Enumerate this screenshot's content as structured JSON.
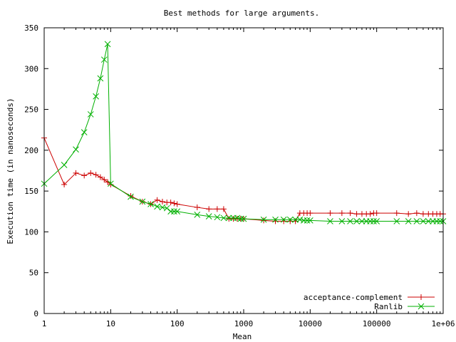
{
  "chart_data": {
    "type": "line",
    "title": "Best methods for large arguments.",
    "xlabel": "Mean",
    "ylabel": "Execution time (in nanoseconds)",
    "xscale": "log",
    "xlim": [
      1,
      1000000
    ],
    "ylim": [
      0,
      350
    ],
    "xticks": [
      1,
      10,
      100,
      1000,
      10000,
      100000,
      1000000
    ],
    "xtick_labels": [
      "1",
      "10",
      "100",
      "1000",
      "10000",
      "100000",
      "1e+06"
    ],
    "yticks": [
      0,
      50,
      100,
      150,
      200,
      250,
      300,
      350
    ],
    "ytick_labels": [
      "0",
      "50",
      "100",
      "150",
      "200",
      "250",
      "300",
      "350"
    ],
    "grid": false,
    "legend_position": "bottom-right",
    "series": [
      {
        "name": "acceptance-complement",
        "color": "#cc0000",
        "marker": "plus",
        "points": [
          [
            1,
            215
          ],
          [
            2,
            158
          ],
          [
            3,
            172
          ],
          [
            4,
            169
          ],
          [
            5,
            172
          ],
          [
            6,
            170
          ],
          [
            7,
            167
          ],
          [
            8,
            164
          ],
          [
            9,
            161
          ],
          [
            10,
            158
          ],
          [
            20,
            144
          ],
          [
            30,
            137
          ],
          [
            40,
            134
          ],
          [
            50,
            139
          ],
          [
            60,
            137
          ],
          [
            70,
            136
          ],
          [
            80,
            136
          ],
          [
            90,
            135
          ],
          [
            100,
            134
          ],
          [
            200,
            130
          ],
          [
            300,
            128
          ],
          [
            400,
            128
          ],
          [
            500,
            128
          ],
          [
            600,
            116
          ],
          [
            700,
            116
          ],
          [
            800,
            116
          ],
          [
            900,
            116
          ],
          [
            1000,
            116
          ],
          [
            2000,
            114
          ],
          [
            3000,
            113
          ],
          [
            4000,
            113
          ],
          [
            5000,
            113
          ],
          [
            6000,
            113
          ],
          [
            7000,
            123
          ],
          [
            8000,
            123
          ],
          [
            9000,
            123
          ],
          [
            10000,
            123
          ],
          [
            20000,
            123
          ],
          [
            30000,
            123
          ],
          [
            40000,
            123
          ],
          [
            50000,
            122
          ],
          [
            60000,
            122
          ],
          [
            70000,
            122
          ],
          [
            80000,
            122
          ],
          [
            90000,
            123
          ],
          [
            100000,
            123
          ],
          [
            200000,
            123
          ],
          [
            300000,
            122
          ],
          [
            400000,
            123
          ],
          [
            500000,
            122
          ],
          [
            600000,
            122
          ],
          [
            700000,
            122
          ],
          [
            800000,
            122
          ],
          [
            900000,
            122
          ],
          [
            1000000,
            122
          ]
        ]
      },
      {
        "name": "Ranlib",
        "color": "#00b000",
        "marker": "cross",
        "points": [
          [
            1,
            159
          ],
          [
            2,
            182
          ],
          [
            3,
            201
          ],
          [
            4,
            222
          ],
          [
            5,
            244
          ],
          [
            6,
            266
          ],
          [
            7,
            288
          ],
          [
            8,
            311
          ],
          [
            9,
            330
          ],
          [
            10,
            159
          ],
          [
            20,
            143
          ],
          [
            30,
            137
          ],
          [
            40,
            134
          ],
          [
            50,
            131
          ],
          [
            60,
            130
          ],
          [
            70,
            129
          ],
          [
            80,
            125
          ],
          [
            90,
            125
          ],
          [
            100,
            125
          ],
          [
            200,
            121
          ],
          [
            300,
            119
          ],
          [
            400,
            118
          ],
          [
            500,
            117
          ],
          [
            600,
            117
          ],
          [
            700,
            117
          ],
          [
            800,
            117
          ],
          [
            900,
            116
          ],
          [
            1000,
            116
          ],
          [
            2000,
            115
          ],
          [
            3000,
            115
          ],
          [
            4000,
            115
          ],
          [
            5000,
            115
          ],
          [
            6000,
            115
          ],
          [
            7000,
            115
          ],
          [
            8000,
            114
          ],
          [
            9000,
            114
          ],
          [
            10000,
            114
          ],
          [
            20000,
            113
          ],
          [
            30000,
            113
          ],
          [
            40000,
            113
          ],
          [
            50000,
            113
          ],
          [
            60000,
            113
          ],
          [
            70000,
            113
          ],
          [
            80000,
            113
          ],
          [
            90000,
            113
          ],
          [
            100000,
            113
          ],
          [
            200000,
            113
          ],
          [
            300000,
            113
          ],
          [
            400000,
            113
          ],
          [
            500000,
            113
          ],
          [
            600000,
            113
          ],
          [
            700000,
            113
          ],
          [
            800000,
            113
          ],
          [
            900000,
            113
          ],
          [
            1000000,
            113
          ]
        ]
      }
    ]
  }
}
